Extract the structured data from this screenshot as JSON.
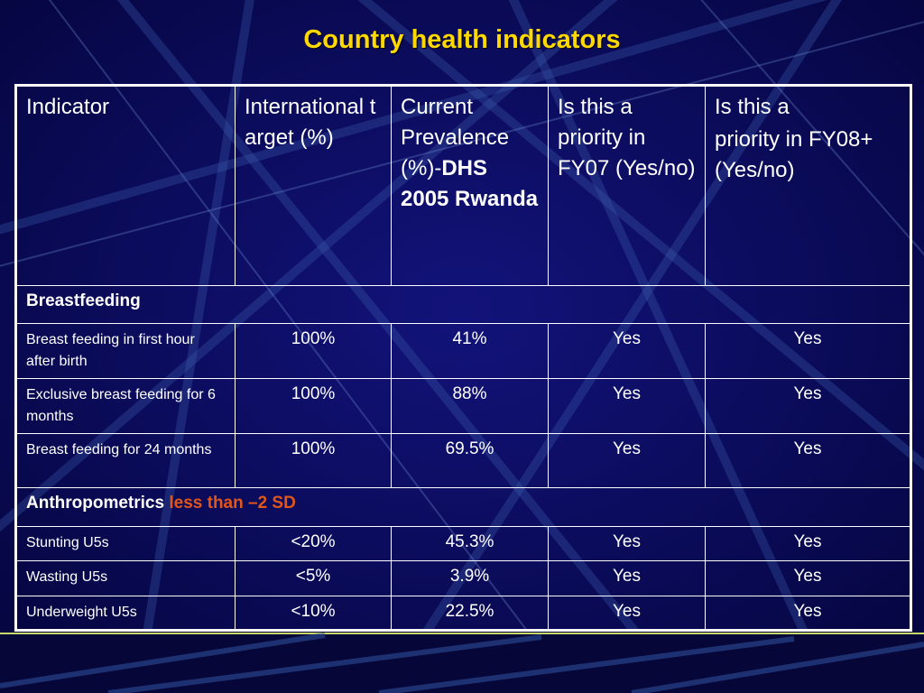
{
  "title": "Country health indicators",
  "colors": {
    "background": "#08084e",
    "title": "#ffd800",
    "qualifier": "#e2561a",
    "text": "#ffffff"
  },
  "headers": {
    "indicator": "Indicator",
    "target": "International target (%)",
    "prevalence_prefix": "Current Prevalence (%)-",
    "prevalence_source": "DHS 2005 Rwanda",
    "fy07": "Is this a priority in FY07 (Yes/no)",
    "fy08_line1": "Is this a",
    "fy08_line2": "priority in FY08+ (Yes/no)"
  },
  "sections": [
    {
      "title": "Breastfeeding",
      "qualifier": "",
      "rows": [
        {
          "indicator": "Breast feeding in first hour after birth",
          "target": "100%",
          "prevalence": "41%",
          "fy07": "Yes",
          "fy08": "Yes"
        },
        {
          "indicator": "Exclusive breast feeding for 6 months",
          "target": "100%",
          "prevalence": "88%",
          "fy07": "Yes",
          "fy08": "Yes"
        },
        {
          "indicator": "Breast feeding for 24 months",
          "target": "100%",
          "prevalence": "69.5%",
          "fy07": "Yes",
          "fy08": "Yes"
        }
      ]
    },
    {
      "title": "Anthropometrics",
      "qualifier": "less than –2 SD",
      "rows": [
        {
          "indicator": "Stunting U5s",
          "target": "<20%",
          "prevalence": "45.3%",
          "fy07": "Yes",
          "fy08": "Yes"
        },
        {
          "indicator": "Wasting U5s",
          "target": "<5%",
          "prevalence": "3.9%",
          "fy07": "Yes",
          "fy08": "Yes"
        },
        {
          "indicator": "Underweight U5s",
          "target": "<10%",
          "prevalence": "22.5%",
          "fy07": "Yes",
          "fy08": "Yes"
        }
      ]
    }
  ]
}
